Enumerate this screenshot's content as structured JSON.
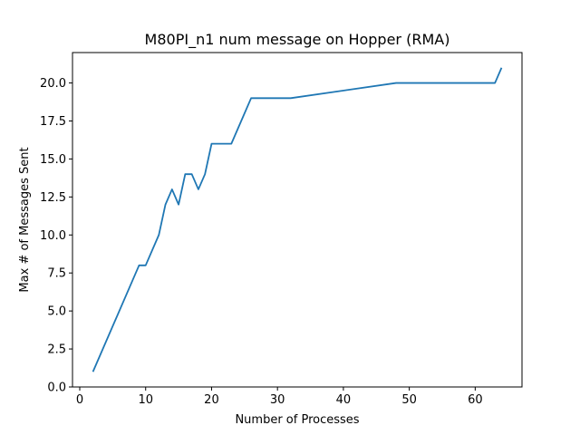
{
  "chart_data": {
    "type": "line",
    "title": "M80PI_n1 num message on Hopper (RMA)",
    "xlabel": "Number of Processes",
    "ylabel": "Max # of Messages Sent",
    "xlim": [
      -1.1,
      67.1
    ],
    "ylim": [
      0,
      22
    ],
    "xticks": [
      0,
      10,
      20,
      30,
      40,
      50,
      60
    ],
    "xtick_labels": [
      "0",
      "10",
      "20",
      "30",
      "40",
      "50",
      "60"
    ],
    "yticks": [
      0,
      2.5,
      5,
      7.5,
      10,
      12.5,
      15,
      17.5,
      20
    ],
    "ytick_labels": [
      "0.0",
      "2.5",
      "5.0",
      "7.5",
      "10.0",
      "12.5",
      "15.0",
      "17.5",
      "20.0"
    ],
    "grid": false,
    "legend": "none",
    "series": [
      {
        "color": "#1f77b4",
        "x": [
          2,
          9,
          10,
          12,
          13,
          14,
          15,
          16,
          17,
          18,
          19,
          20,
          23,
          26,
          32,
          48,
          63,
          64
        ],
        "y": [
          1,
          8,
          8,
          10,
          12,
          13,
          12,
          14,
          14,
          13,
          14,
          16,
          16,
          19,
          19,
          20,
          20,
          21
        ]
      }
    ]
  }
}
